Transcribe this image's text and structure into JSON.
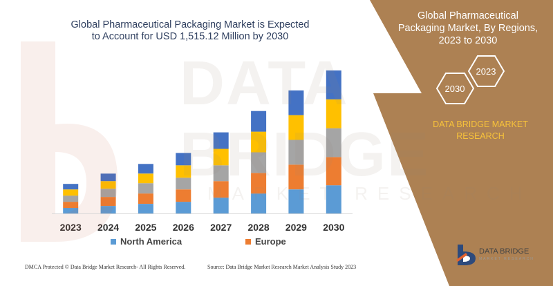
{
  "watermark": {
    "text": "DATA BRIDGE",
    "subtext": "MARKET RESEARCH"
  },
  "header": {
    "title": "Global Pharmaceutical Packaging Market is Expected to Account for USD 1,515.12 Million by 2030"
  },
  "right_panel": {
    "title": "Global Pharmaceutical Packaging Market, By Regions, 2023 to 2030",
    "hex_start_year": "2023",
    "hex_end_year": "2030",
    "company": "DATA BRIDGE MARKET RESEARCH",
    "background_color": "#ad8153",
    "accent_color": "#f7c23a"
  },
  "brand": {
    "name": "DATA BRIDGE",
    "tagline": "MARKET RESEARCH"
  },
  "footer": {
    "left": "DMCA Protected © Data Bridge Market Research- All Rights Reserved.",
    "right": "Source: Data Bridge Market Research Market Analysis Study 2023"
  },
  "chart_data": {
    "type": "bar",
    "stacked": true,
    "title": "Global Pharmaceutical Packaging Market is Expected to Account for USD 1,515.12 Million by 2030",
    "xlabel": "",
    "ylabel": "",
    "categories": [
      "2023",
      "2024",
      "2025",
      "2026",
      "2027",
      "2028",
      "2029",
      "2030"
    ],
    "ylim": [
      0,
      210
    ],
    "grid": false,
    "legend_position": "bottom",
    "series": [
      {
        "name": "North America",
        "color": "#5b9bd5",
        "values": [
          8,
          11,
          14,
          17,
          23,
          29,
          35,
          41
        ]
      },
      {
        "name": "Europe",
        "color": "#ed7d31",
        "values": [
          9,
          13,
          15,
          18,
          24,
          30,
          36,
          41
        ]
      },
      {
        "series_color_only": true,
        "color": "#a5a5a5",
        "values": [
          9,
          12,
          15,
          17,
          23,
          30,
          36,
          42
        ]
      },
      {
        "series_color_only": true,
        "color": "#ffc000",
        "values": [
          9,
          11,
          14,
          18,
          24,
          30,
          36,
          42
        ]
      },
      {
        "series_color_only": true,
        "color": "#4472c4",
        "values": [
          8,
          11,
          14,
          18,
          24,
          30,
          36,
          42
        ]
      }
    ]
  }
}
